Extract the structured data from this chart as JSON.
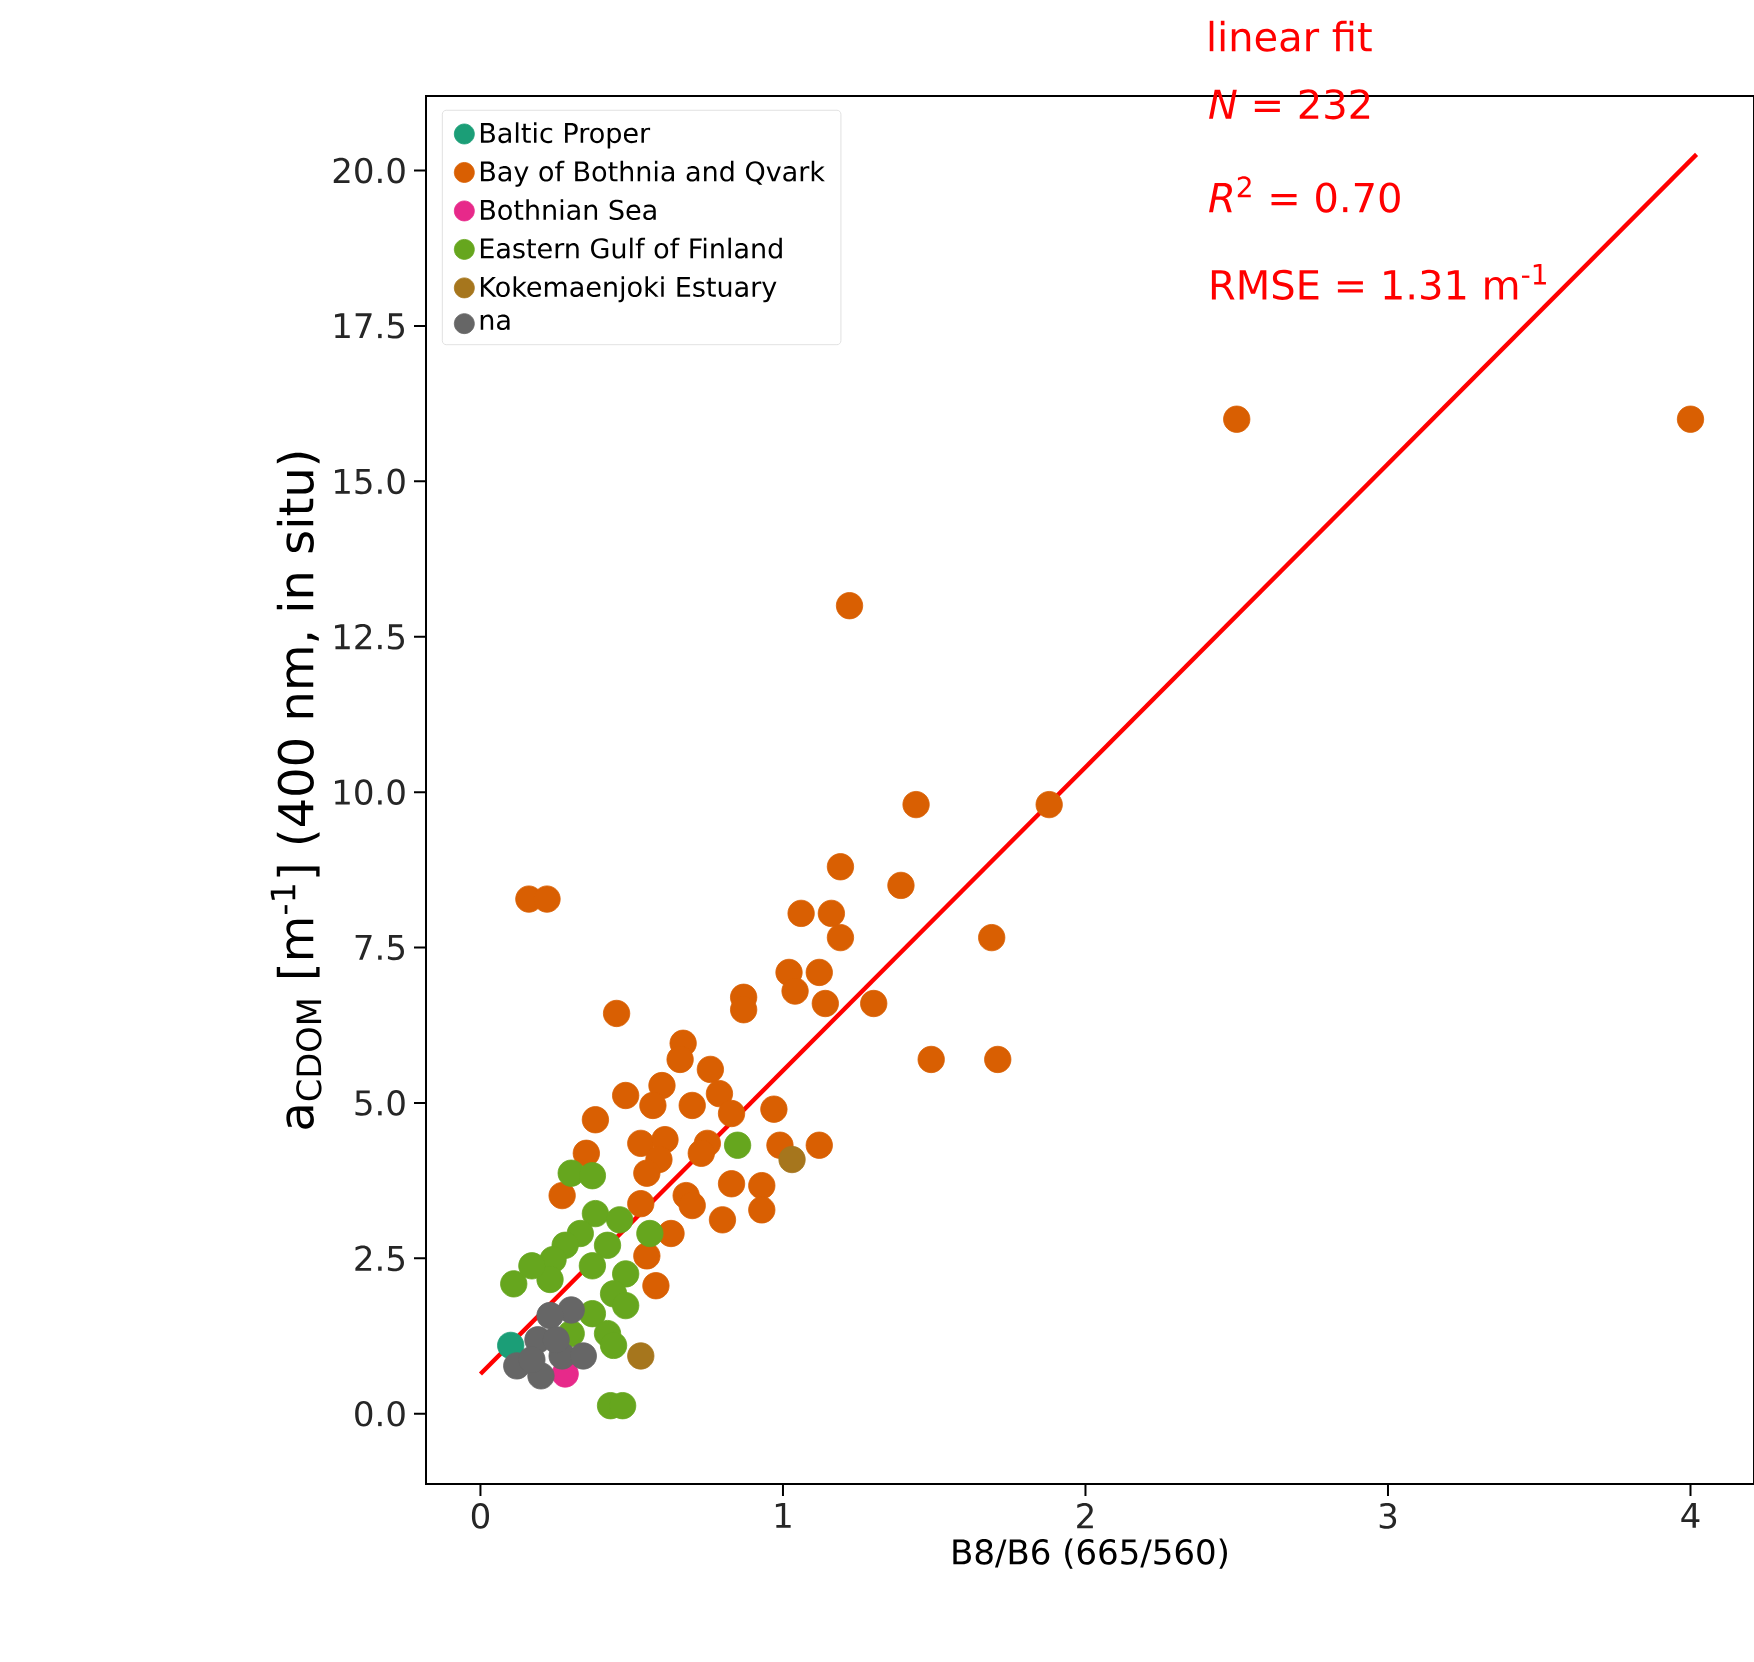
{
  "chart_data": {
    "type": "scatter",
    "xlabel": "B8/B6 (665/560)",
    "ylabel": "a$_{CDOM}$ [m$^{-1}$] (400 nm, in situ)",
    "xlim": [
      -0.18,
      4.21
    ],
    "ylim": [
      -1.13,
      21.2
    ],
    "xticks": [
      0,
      1,
      2,
      3,
      4
    ],
    "yticks": [
      {
        "value": 0,
        "label": "0.0"
      },
      {
        "value": 2.5,
        "label": "2.5"
      },
      {
        "value": 5,
        "label": "5.0"
      },
      {
        "value": 7.5,
        "label": "7.5"
      },
      {
        "value": 10,
        "label": "10.0"
      },
      {
        "value": 12.5,
        "label": "12.5"
      },
      {
        "value": 15,
        "label": "15.0"
      },
      {
        "value": 17.5,
        "label": "17.5"
      },
      {
        "value": 20,
        "label": "20.0"
      }
    ],
    "legend": "top left",
    "annotations": [
      "*N* = 232",
      "*R*$^{2}$ = 0.70",
      "RMSE = 1.31 m$^{-1}$"
    ],
    "series": [
      {
        "name": "Baltic Proper",
        "color": "#1b9e77",
        "marker": "circle",
        "x": [
          0.1
        ],
        "values": [
          1.1
        ]
      },
      {
        "name": "Bay of Bothnia and Qvark",
        "color": "#d95f02",
        "marker": "circle",
        "x": [
          4.0,
          2.5,
          1.22,
          1.44,
          1.88,
          1.19,
          1.39,
          1.06,
          1.16,
          1.19,
          1.69,
          1.02,
          1.12,
          1.04,
          1.14,
          1.3,
          0.87,
          0.87,
          0.45,
          0.16,
          0.22,
          1.49,
          1.71,
          0.67,
          0.66,
          0.76,
          0.6,
          0.79,
          0.48,
          0.57,
          0.97,
          0.38,
          0.7,
          0.83,
          0.53,
          0.61,
          0.75,
          0.99,
          1.12,
          0.35,
          0.59,
          0.55,
          0.73,
          0.83,
          0.93,
          0.27,
          0.53,
          0.68,
          0.7,
          0.8,
          0.93,
          0.63,
          0.55,
          0.58
        ],
        "values": [
          16.0,
          16.0,
          13.0,
          9.8,
          9.8,
          8.8,
          8.5,
          8.05,
          8.05,
          7.66,
          7.66,
          7.1,
          7.1,
          6.8,
          6.6,
          6.6,
          6.7,
          6.5,
          6.44,
          8.28,
          8.28,
          5.7,
          5.7,
          5.96,
          5.7,
          5.54,
          5.28,
          5.15,
          5.12,
          4.96,
          4.9,
          4.73,
          4.96,
          4.83,
          4.35,
          4.41,
          4.35,
          4.32,
          4.32,
          4.19,
          4.09,
          3.87,
          4.19,
          3.7,
          3.67,
          3.51,
          3.38,
          3.51,
          3.35,
          3.12,
          3.28,
          2.9,
          2.54,
          2.06
        ]
      },
      {
        "name": "Bothnian Sea",
        "color": "#e7298a",
        "marker": "circle",
        "x": [
          0.28
        ],
        "values": [
          0.64
        ]
      },
      {
        "name": "Eastern Gulf of Finland",
        "color": "#66a61e",
        "marker": "circle",
        "x": [
          0.85,
          0.3,
          0.37,
          0.11,
          0.43,
          0.47,
          0.38,
          0.46,
          0.56,
          0.33,
          0.28,
          0.42,
          0.24,
          0.37,
          0.48,
          0.23,
          0.44,
          0.48,
          0.37,
          0.42,
          0.3,
          0.44,
          0.17
        ],
        "values": [
          4.32,
          3.87,
          3.83,
          2.09,
          0.13,
          0.13,
          3.22,
          3.12,
          2.9,
          2.9,
          2.71,
          2.71,
          2.48,
          2.38,
          2.25,
          2.16,
          1.93,
          1.74,
          1.61,
          1.29,
          1.29,
          1.1,
          2.38
        ]
      },
      {
        "name": "Kokemaenjoki Estuary",
        "color": "#a6761d",
        "marker": "circle",
        "x": [
          1.03,
          0.53
        ],
        "values": [
          4.09,
          0.93
        ]
      },
      {
        "name": "na",
        "color": "#666666",
        "marker": "circle",
        "x": [
          0.3,
          0.23,
          0.19,
          0.12,
          0.2,
          0.27,
          0.34,
          0.17,
          0.25
        ],
        "values": [
          1.67,
          1.58,
          1.19,
          0.77,
          0.61,
          0.93,
          0.93,
          0.87,
          1.19
        ]
      },
      {
        "name": "linear fit",
        "type": "line",
        "marker": "none",
        "color": "#ff0000",
        "x": [
          0,
          4.02
        ],
        "values": [
          0.64,
          20.26
        ]
      }
    ]
  }
}
